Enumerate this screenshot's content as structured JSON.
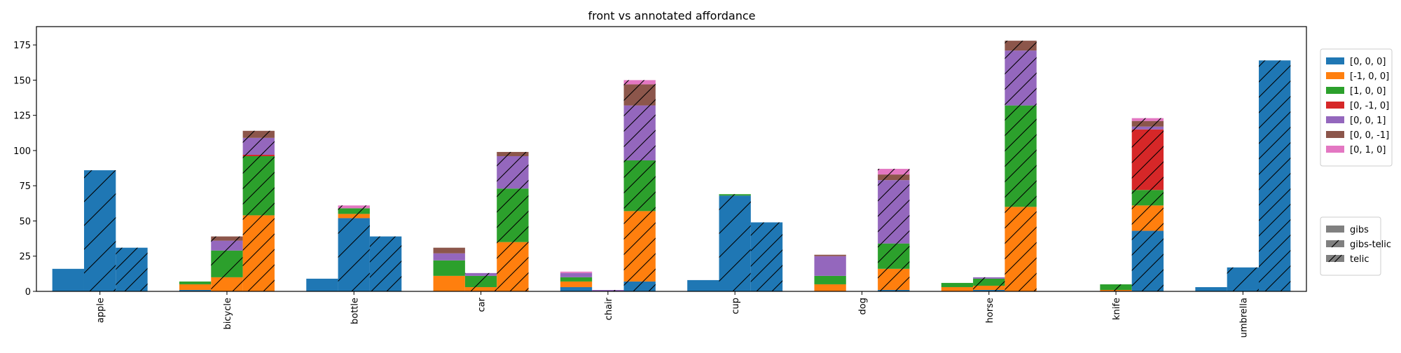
{
  "chart_data": {
    "type": "bar",
    "stacked": true,
    "title": "front vs annotated affordance",
    "xlabel": "",
    "ylabel": "",
    "ylim": [
      0,
      188
    ],
    "yticks": [
      0,
      25,
      50,
      75,
      100,
      125,
      150,
      175
    ],
    "categories": [
      "apple",
      "bicycle",
      "bottle",
      "car",
      "chair",
      "cup",
      "dog",
      "horse",
      "knife",
      "umbrella"
    ],
    "groups": [
      {
        "name": "gibs",
        "hatch": "none"
      },
      {
        "name": "gibs-telic",
        "hatch": "coarse"
      },
      {
        "name": "telic",
        "hatch": "dense"
      }
    ],
    "series": [
      {
        "name": "[0, 0, 0]",
        "color": "#1f77b4",
        "values": {
          "gibs": [
            16,
            1,
            9,
            0,
            3,
            8,
            0,
            0,
            0,
            3
          ],
          "gibs-telic": [
            86,
            0,
            52,
            0,
            0,
            68,
            0,
            1,
            0,
            17
          ],
          "telic": [
            31,
            0,
            39,
            0,
            7,
            49,
            1,
            0,
            43,
            164
          ]
        }
      },
      {
        "name": "[-1, 0, 0]",
        "color": "#ff7f0e",
        "values": {
          "gibs": [
            0,
            4,
            0,
            11,
            4,
            0,
            5,
            3,
            0,
            0
          ],
          "gibs-telic": [
            0,
            10,
            3,
            3,
            0,
            0,
            0,
            3,
            1,
            0
          ],
          "telic": [
            0,
            54,
            0,
            35,
            50,
            0,
            15,
            60,
            18,
            0
          ]
        }
      },
      {
        "name": "[1, 0, 0]",
        "color": "#2ca02c",
        "values": {
          "gibs": [
            0,
            2,
            0,
            11,
            3,
            0,
            6,
            3,
            0,
            0
          ],
          "gibs-telic": [
            0,
            19,
            4,
            8,
            0,
            1,
            0,
            5,
            4,
            0
          ],
          "telic": [
            0,
            42,
            0,
            38,
            36,
            0,
            18,
            72,
            11,
            0
          ]
        }
      },
      {
        "name": "[0, -1, 0]",
        "color": "#d62728",
        "values": {
          "gibs": [
            0,
            0,
            0,
            0,
            0,
            0,
            0,
            0,
            0,
            0
          ],
          "gibs-telic": [
            0,
            0,
            0,
            0,
            0,
            0,
            0,
            0,
            0,
            0
          ],
          "telic": [
            0,
            1,
            0,
            0,
            0,
            0,
            0,
            0,
            43,
            0
          ]
        }
      },
      {
        "name": "[0, 0, 1]",
        "color": "#9467bd",
        "values": {
          "gibs": [
            0,
            0,
            0,
            5,
            3,
            0,
            14,
            0,
            0,
            0
          ],
          "gibs-telic": [
            0,
            7,
            0,
            2,
            1,
            0,
            0,
            1,
            0,
            0
          ],
          "telic": [
            0,
            12,
            0,
            23,
            39,
            0,
            45,
            39,
            2,
            0
          ]
        }
      },
      {
        "name": "[0, 0, -1]",
        "color": "#8c564b",
        "values": {
          "gibs": [
            0,
            0,
            0,
            4,
            0,
            0,
            1,
            0,
            0,
            0
          ],
          "gibs-telic": [
            0,
            3,
            0,
            0,
            0,
            0,
            0,
            0,
            0,
            0
          ],
          "telic": [
            0,
            5,
            0,
            3,
            15,
            0,
            4,
            7,
            4,
            0
          ]
        }
      },
      {
        "name": "[0, 1, 0]",
        "color": "#e377c2",
        "values": {
          "gibs": [
            0,
            0,
            0,
            0,
            1,
            0,
            0,
            0,
            0,
            0
          ],
          "gibs-telic": [
            0,
            0,
            2,
            0,
            0,
            0,
            0,
            0,
            0,
            0
          ],
          "telic": [
            0,
            0,
            0,
            0,
            3,
            0,
            4,
            0,
            2,
            0
          ]
        }
      }
    ],
    "legend_position": "right",
    "grid": false
  }
}
